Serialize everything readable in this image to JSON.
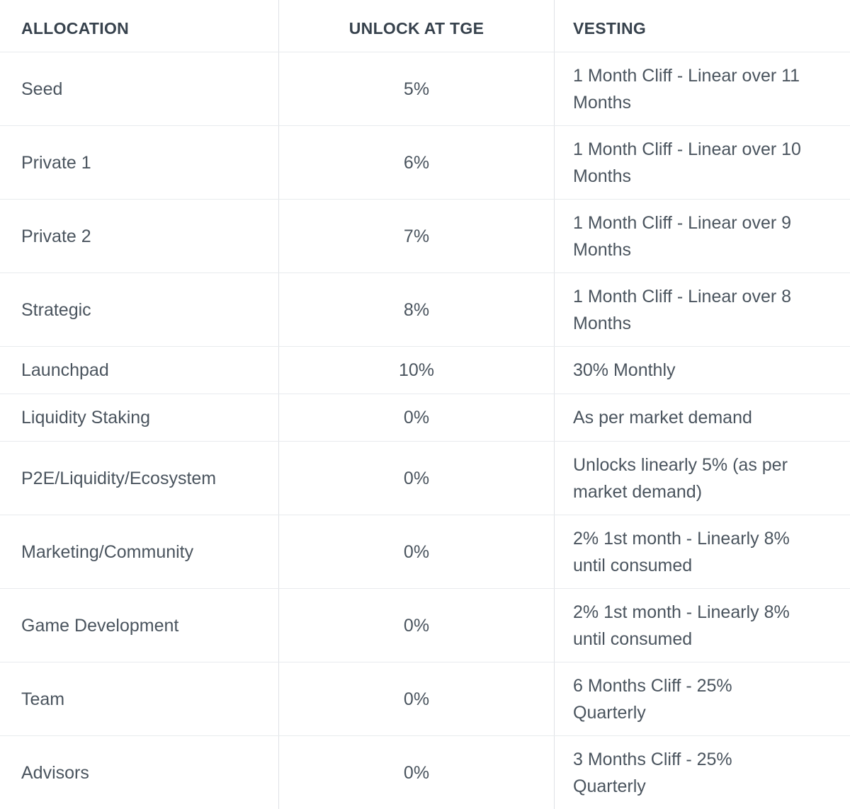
{
  "colors": {
    "background": "#ffffff",
    "header_text": "#37424d",
    "body_text": "#4a545e",
    "divider_vertical": "#dfe2e6",
    "divider_horizontal": "#e8ebee"
  },
  "chart_data": {
    "type": "table",
    "columns": [
      "ALLOCATION",
      "UNLOCK AT TGE",
      "VESTING"
    ],
    "column_alignments": [
      "left",
      "center",
      "left"
    ],
    "rows": [
      [
        "Seed",
        "5%",
        "1 Month Cliff - Linear over 11 Months"
      ],
      [
        "Private 1",
        "6%",
        "1 Month Cliff - Linear over 10 Months"
      ],
      [
        "Private 2",
        "7%",
        "1 Month Cliff - Linear over 9 Months"
      ],
      [
        "Strategic",
        "8%",
        "1 Month Cliff - Linear over 8 Months"
      ],
      [
        "Launchpad",
        "10%",
        "30% Monthly"
      ],
      [
        "Liquidity Staking",
        "0%",
        "As per market demand"
      ],
      [
        "P2E/Liquidity/Ecosystem",
        "0%",
        "Unlocks linearly 5% (as per market demand)"
      ],
      [
        "Marketing/Community",
        "0%",
        "2% 1st month - Linearly 8% until consumed"
      ],
      [
        "Game Development",
        "0%",
        "2% 1st month - Linearly 8% until consumed"
      ],
      [
        "Team",
        "0%",
        "6 Months Cliff - 25% Quarterly"
      ],
      [
        "Advisors",
        "0%",
        "3 Months Cliff - 25% Quarterly"
      ]
    ]
  }
}
